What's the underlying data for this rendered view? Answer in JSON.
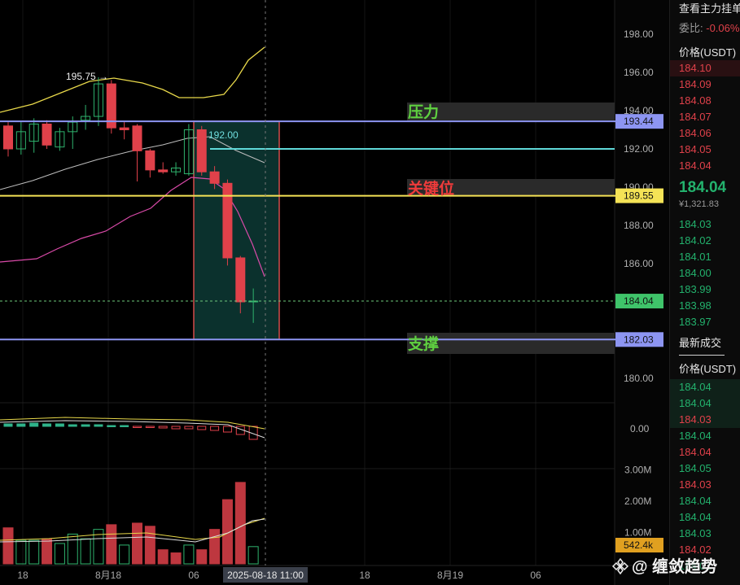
{
  "chart_data": {
    "type": "candlestick",
    "x_ticks": [
      "18",
      "8月18",
      "06",
      "2025-08-18 11:00",
      "18",
      "8月19",
      "06"
    ],
    "y_ticks": [
      "198.00",
      "196.00",
      "194.00",
      "192.00",
      "190.00",
      "188.00",
      "186.00",
      "180.00"
    ],
    "ylim": [
      179,
      199
    ],
    "candles": [
      {
        "o": 193.2,
        "h": 193.4,
        "l": 191.6,
        "c": 192.0
      },
      {
        "o": 192.0,
        "h": 193.4,
        "l": 191.7,
        "c": 192.9
      },
      {
        "o": 192.4,
        "h": 193.6,
        "l": 191.8,
        "c": 193.3
      },
      {
        "o": 193.3,
        "h": 193.5,
        "l": 192.0,
        "c": 192.2
      },
      {
        "o": 192.1,
        "h": 193.1,
        "l": 191.9,
        "c": 192.9
      },
      {
        "o": 192.9,
        "h": 193.7,
        "l": 192.0,
        "c": 193.4
      },
      {
        "o": 193.5,
        "h": 194.3,
        "l": 193.0,
        "c": 193.7
      },
      {
        "o": 193.7,
        "h": 195.75,
        "l": 193.2,
        "c": 195.4
      },
      {
        "o": 195.4,
        "h": 195.6,
        "l": 192.8,
        "c": 193.1
      },
      {
        "o": 193.1,
        "h": 193.4,
        "l": 192.5,
        "c": 193.0
      },
      {
        "o": 193.2,
        "h": 193.3,
        "l": 190.3,
        "c": 191.9
      },
      {
        "o": 191.9,
        "h": 192.0,
        "l": 190.5,
        "c": 190.9
      },
      {
        "o": 190.9,
        "h": 191.3,
        "l": 190.7,
        "c": 190.8
      },
      {
        "o": 190.8,
        "h": 191.3,
        "l": 190.6,
        "c": 191.0
      },
      {
        "o": 190.7,
        "h": 193.3,
        "l": 190.6,
        "c": 193.0
      },
      {
        "o": 193.0,
        "h": 193.2,
        "l": 190.6,
        "c": 190.8
      },
      {
        "o": 190.8,
        "h": 191.1,
        "l": 189.9,
        "c": 190.2
      },
      {
        "o": 190.2,
        "h": 190.4,
        "l": 185.9,
        "c": 186.3
      },
      {
        "o": 186.3,
        "h": 186.4,
        "l": 183.4,
        "c": 184.0
      },
      {
        "o": 184.0,
        "h": 184.7,
        "l": 182.9,
        "c": 184.04
      }
    ],
    "levels": {
      "pressure": {
        "value": 193.44,
        "label": "压力"
      },
      "key": {
        "value": 189.55,
        "label": "关键位"
      },
      "support": {
        "value": 182.03,
        "label": "支撑"
      },
      "last": {
        "value": 184.04
      }
    },
    "annotations": {
      "high_label": "195.75",
      "h192_label": "192.00"
    },
    "macd": {
      "label": "0.00"
    },
    "volume": {
      "ticks": [
        "3.00M",
        "2.00M",
        "1.00M"
      ],
      "last_label": "542.4k",
      "values": [
        1.15,
        0.75,
        0.75,
        0.8,
        0.65,
        0.95,
        0.8,
        1.1,
        1.25,
        0.6,
        1.3,
        1.2,
        0.45,
        0.35,
        0.6,
        0.45,
        1.1,
        2.05,
        2.6,
        0.55
      ],
      "up": [
        false,
        true,
        true,
        false,
        true,
        true,
        true,
        true,
        false,
        true,
        false,
        false,
        false,
        false,
        true,
        false,
        false,
        false,
        false,
        true
      ]
    }
  },
  "orderbook": {
    "header": "查看主力挂单",
    "ratio_label": "委比:",
    "ratio_value": "-0.06%",
    "price_header": "价格(USDT)",
    "asks": [
      "184.10",
      "184.09",
      "184.08",
      "184.07",
      "184.06",
      "184.05",
      "184.04"
    ],
    "last_price": "184.04",
    "last_cny": "¥1,321.83",
    "bids": [
      "184.03",
      "184.02",
      "184.01",
      "184.00",
      "183.99",
      "183.98",
      "183.97"
    ],
    "trades_title": "最新成交",
    "trades_price_header": "价格(USDT)",
    "trades": [
      {
        "p": "184.04",
        "s": "buy"
      },
      {
        "p": "184.04",
        "s": "buy"
      },
      {
        "p": "184.03",
        "s": "sell"
      },
      {
        "p": "184.04",
        "s": "buy"
      },
      {
        "p": "184.04",
        "s": "sell"
      },
      {
        "p": "184.05",
        "s": "buy"
      },
      {
        "p": "184.03",
        "s": "sell"
      },
      {
        "p": "184.04",
        "s": "buy"
      },
      {
        "p": "184.04",
        "s": "buy"
      },
      {
        "p": "184.03",
        "s": "buy"
      },
      {
        "p": "184.02",
        "s": "sell"
      },
      {
        "p": "184.01",
        "s": "buy"
      }
    ]
  },
  "watermark": "@ 缠敛趋势"
}
